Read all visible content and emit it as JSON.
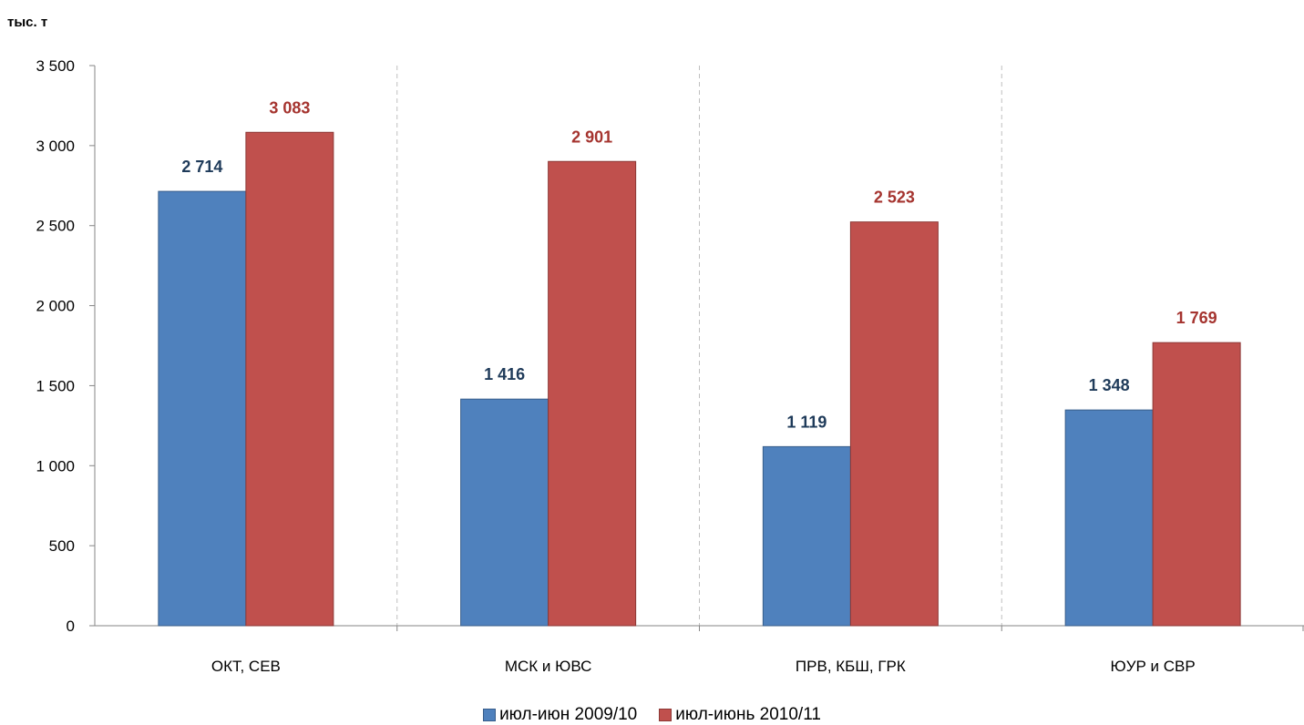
{
  "chart_data": {
    "type": "bar",
    "unit_label": "тыс. т",
    "categories": [
      "ОКТ, СЕВ",
      "МСК и ЮВС",
      "ПРВ, КБШ, ГРК",
      "ЮУР и СВР"
    ],
    "series": [
      {
        "name": "июл-июн 2009/10",
        "values": [
          2714,
          1416,
          1119,
          1348
        ],
        "labels": [
          "2 714",
          "1 416",
          "1 119",
          "1 348"
        ],
        "color": "#4F81BD",
        "border_color": "#385D8A",
        "label_color": "#1F3B5A"
      },
      {
        "name": "июл-июнь 2010/11",
        "values": [
          3083,
          2901,
          2523,
          1769
        ],
        "labels": [
          "3 083",
          "2 901",
          "2 523",
          "1 769"
        ],
        "color": "#C0504D",
        "border_color": "#8C3836",
        "label_color": "#A5342F"
      }
    ],
    "ylim": [
      0,
      3500
    ],
    "yticks": [
      0,
      500,
      1000,
      1500,
      2000,
      2500,
      3000,
      3500
    ],
    "ytick_labels": [
      "0",
      "500",
      "1 000",
      "1 500",
      "2 000",
      "2 500",
      "3 000",
      "3 500"
    ],
    "grid": false,
    "category_separators": true,
    "legend_position": "bottom"
  }
}
